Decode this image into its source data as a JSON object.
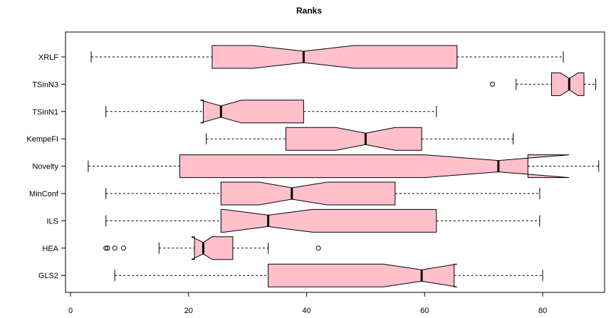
{
  "chart_data": {
    "type": "boxplot",
    "orientation": "horizontal",
    "notched": true,
    "title": "Ranks",
    "xlabel": "",
    "ylabel": "",
    "xlim": [
      0,
      90
    ],
    "x_ticks": [
      0,
      20,
      40,
      60,
      80
    ],
    "box_color": "#ffc0cb",
    "series": [
      {
        "name": "XRLF",
        "whisker_low": 3.5,
        "q1": 24,
        "median": 39.5,
        "q3": 65.5,
        "whisker_high": 83.5,
        "notch": [
          31,
          48
        ],
        "outliers": []
      },
      {
        "name": "TSinN3",
        "whisker_low": 75.5,
        "q1": 81.5,
        "median": 84.5,
        "q3": 87,
        "whisker_high": 89,
        "notch": [
          83,
          86
        ],
        "outliers": [
          71.5
        ]
      },
      {
        "name": "TSinN1",
        "whisker_low": 6,
        "q1": 22.5,
        "median": 25.5,
        "q3": 39.5,
        "whisker_high": 62,
        "notch": [
          22,
          29
        ],
        "outliers": []
      },
      {
        "name": "KempeFI",
        "whisker_low": 23,
        "q1": 36.5,
        "median": 50,
        "q3": 59.5,
        "whisker_high": 75,
        "notch": [
          45,
          55
        ],
        "outliers": []
      },
      {
        "name": "Novelty",
        "whisker_low": 3,
        "q1": 18.5,
        "median": 72.5,
        "q3": 77.5,
        "whisker_high": 89.5,
        "notch": [
          60,
          84.5
        ],
        "outliers": []
      },
      {
        "name": "MinConf",
        "whisker_low": 6,
        "q1": 25.5,
        "median": 37.5,
        "q3": 55,
        "whisker_high": 79.5,
        "notch": [
          32,
          43.5
        ],
        "outliers": []
      },
      {
        "name": "ILS",
        "whisker_low": 6,
        "q1": 25.5,
        "median": 33.5,
        "q3": 62,
        "whisker_high": 79.5,
        "notch": [
          26,
          41
        ],
        "outliers": []
      },
      {
        "name": "HEA",
        "whisker_low": 15,
        "q1": 21,
        "median": 22.5,
        "q3": 27.5,
        "whisker_high": 33.5,
        "notch": [
          20.5,
          24
        ],
        "outliers": [
          6,
          6.3,
          7.5,
          9,
          42
        ]
      },
      {
        "name": "GLS2",
        "whisker_low": 7.5,
        "q1": 33.5,
        "median": 59.5,
        "q3": 65,
        "whisker_high": 80,
        "notch": [
          53,
          65.5
        ],
        "outliers": []
      }
    ]
  }
}
